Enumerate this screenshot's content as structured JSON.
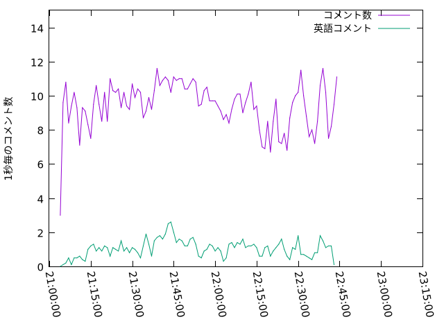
{
  "chart_data": {
    "type": "line",
    "title": "",
    "xlabel": "",
    "ylabel": "1秒毎のコメント数",
    "xlim": [
      "21:00:00",
      "23:15:00"
    ],
    "ylim": [
      0,
      15
    ],
    "x_ticks": [
      "21:00:00",
      "21:15:00",
      "21:30:00",
      "21:45:00",
      "22:00:00",
      "22:15:00",
      "22:30:00",
      "22:45:00",
      "23:00:00",
      "23:15:00"
    ],
    "y_ticks": [
      "0",
      "2",
      "4",
      "6",
      "8",
      "10",
      "12",
      "14"
    ],
    "grid": false,
    "legend_position": "top-right",
    "x_start": "21:04:00",
    "x_step": "00:01:00",
    "series": [
      {
        "name": "コメント数",
        "color": "#9400d3",
        "values": [
          3.0,
          9.6,
          10.8,
          8.4,
          9.4,
          10.2,
          9.3,
          7.1,
          9.3,
          9.1,
          8.3,
          7.5,
          9.5,
          10.6,
          9.5,
          8.5,
          10.2,
          8.5,
          11.0,
          10.3,
          10.2,
          10.4,
          9.3,
          10.2,
          9.4,
          9.2,
          10.7,
          9.9,
          10.4,
          10.2,
          8.7,
          9.1,
          9.9,
          9.2,
          10.3,
          11.6,
          10.6,
          10.9,
          11.1,
          10.9,
          10.2,
          11.1,
          10.9,
          11.0,
          11.0,
          10.4,
          10.4,
          10.7,
          11.0,
          10.8,
          9.4,
          9.5,
          10.3,
          10.5,
          9.7,
          9.7,
          9.7,
          9.4,
          9.1,
          8.6,
          8.9,
          8.4,
          9.2,
          9.8,
          10.1,
          10.1,
          9.0,
          9.6,
          10.1,
          10.8,
          9.2,
          9.4,
          8.0,
          7.0,
          6.9,
          8.5,
          6.7,
          8.5,
          9.8,
          7.3,
          7.2,
          7.8,
          6.8,
          8.7,
          9.6,
          10.0,
          10.2,
          11.5,
          10.0,
          8.8,
          7.6,
          8.0,
          7.2,
          8.5,
          10.6,
          11.6,
          10.2,
          7.5,
          8.2,
          9.5,
          11.1
        ]
      },
      {
        "name": "英語コメント",
        "color": "#009e73",
        "values": [
          0.0,
          0.1,
          0.2,
          0.5,
          0.1,
          0.5,
          0.5,
          0.6,
          0.4,
          0.3,
          1.0,
          1.2,
          1.3,
          0.9,
          1.1,
          0.9,
          1.2,
          1.1,
          0.6,
          1.1,
          1.0,
          0.9,
          1.5,
          0.9,
          1.1,
          0.8,
          1.1,
          1.0,
          0.8,
          0.5,
          1.2,
          1.9,
          1.3,
          0.6,
          1.5,
          1.7,
          1.8,
          1.6,
          1.9,
          2.5,
          2.6,
          2.0,
          1.4,
          1.6,
          1.5,
          1.2,
          1.2,
          1.6,
          1.7,
          1.3,
          0.6,
          0.5,
          0.9,
          1.0,
          1.3,
          1.2,
          0.9,
          1.1,
          0.9,
          0.3,
          0.5,
          1.3,
          1.4,
          1.1,
          1.4,
          1.3,
          1.6,
          1.1,
          1.2,
          1.2,
          1.3,
          1.1,
          0.6,
          0.6,
          1.1,
          1.2,
          0.6,
          0.9,
          1.1,
          1.3,
          1.6,
          1.0,
          0.6,
          0.4,
          1.1,
          1.0,
          1.8,
          0.7,
          0.7,
          0.6,
          0.5,
          0.4,
          0.8,
          0.8,
          1.8,
          1.5,
          1.1,
          1.2,
          1.2,
          0.1
        ]
      }
    ]
  }
}
